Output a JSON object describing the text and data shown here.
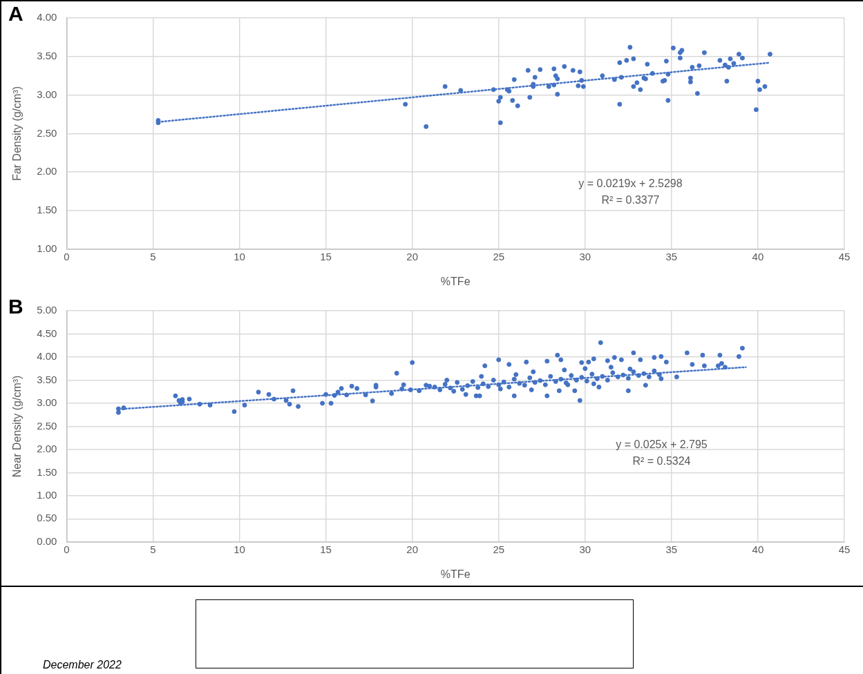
{
  "chart_data": [
    {
      "type": "scatter",
      "title": "A",
      "xlabel": "%TFe",
      "ylabel": "Far Density (g/cm³)",
      "grid": true,
      "marker": "circle",
      "xlim": [
        0,
        45
      ],
      "xticks": [
        0,
        5,
        10,
        15,
        20,
        25,
        30,
        35,
        40,
        45
      ],
      "ylim": [
        1,
        4
      ],
      "yticks": [
        {
          "value": 1,
          "label": "1.00"
        },
        {
          "value": 1.5,
          "label": "1.50"
        },
        {
          "value": 2,
          "label": "2.00"
        },
        {
          "value": 2.5,
          "label": "2.50"
        },
        {
          "value": 3,
          "label": "3.00"
        },
        {
          "value": 3.5,
          "label": "3.50"
        },
        {
          "value": 4,
          "label": "4.00"
        }
      ],
      "series": [
        {
          "type": "scatter",
          "color": "#4472c4",
          "x": [
            5.3,
            5.3,
            19.6,
            20.8,
            21.9,
            22.8,
            24.7,
            25.0,
            25.1,
            25.1,
            25.5,
            25.6,
            25.8,
            25.9,
            26.1,
            26.7,
            26.8,
            27.0,
            27.0,
            27.4,
            27.1,
            27.9,
            28.2,
            28.2,
            28.3,
            28.4,
            28.4,
            28.8,
            29.3,
            29.6,
            29.7,
            29.8,
            29.9,
            31.0,
            31.7,
            32.0,
            32.0,
            32.1,
            32.4,
            32.6,
            32.8,
            32.8,
            33.0,
            33.2,
            33.4,
            33.5,
            33.6,
            33.9,
            34.5,
            34.6,
            34.7,
            34.8,
            34.8,
            35.1,
            35.5,
            35.5,
            35.6,
            36.1,
            36.1,
            36.2,
            36.5,
            36.6,
            36.9,
            37.8,
            38.1,
            38.2,
            38.3,
            38.4,
            38.6,
            38.9,
            39.1,
            39.9,
            40.0,
            40.1,
            40.4,
            40.7
          ],
          "values": [
            2.67,
            2.64,
            2.88,
            2.59,
            3.11,
            3.06,
            3.07,
            2.92,
            2.64,
            2.97,
            3.07,
            3.05,
            2.93,
            3.2,
            2.86,
            3.32,
            2.97,
            3.11,
            3.14,
            3.33,
            3.23,
            3.11,
            3.13,
            3.34,
            3.25,
            3.01,
            3.21,
            3.37,
            3.32,
            3.12,
            3.3,
            3.19,
            3.11,
            3.25,
            3.2,
            2.88,
            3.42,
            3.23,
            3.45,
            3.62,
            3.11,
            3.47,
            3.16,
            3.07,
            3.22,
            3.21,
            3.4,
            3.28,
            3.18,
            3.19,
            3.44,
            2.93,
            3.27,
            3.61,
            3.48,
            3.55,
            3.58,
            3.22,
            3.17,
            3.36,
            3.02,
            3.38,
            3.55,
            3.45,
            3.39,
            3.18,
            3.36,
            3.47,
            3.41,
            3.53,
            3.48,
            2.81,
            3.18,
            3.07,
            3.11,
            3.53
          ]
        },
        {
          "type": "line",
          "color": "#4472c4",
          "marker": "none",
          "line_style": "dotted",
          "x": [
            5.3,
            40.7
          ],
          "values": [
            2.65,
            3.42
          ]
        }
      ],
      "annotations": [
        "y = 0.0219x + 2.5298",
        "R² = 0.3377"
      ]
    },
    {
      "type": "scatter",
      "title": "B",
      "xlabel": "%TFe",
      "ylabel": "Near Density (g/cm³)",
      "grid": true,
      "marker": "circle",
      "xlim": [
        0,
        45
      ],
      "xticks": [
        0,
        5,
        10,
        15,
        20,
        25,
        30,
        35,
        40,
        45
      ],
      "ylim": [
        0,
        5
      ],
      "yticks": [
        {
          "value": 0,
          "label": "0.00"
        },
        {
          "value": 0.5,
          "label": "0.50"
        },
        {
          "value": 1,
          "label": "1.00"
        },
        {
          "value": 1.5,
          "label": "1.50"
        },
        {
          "value": 2,
          "label": "2.00"
        },
        {
          "value": 2.5,
          "label": "2.50"
        },
        {
          "value": 3,
          "label": "3.00"
        },
        {
          "value": 3.5,
          "label": "3.50"
        },
        {
          "value": 4,
          "label": "4.00"
        },
        {
          "value": 4.5,
          "label": "4.50"
        },
        {
          "value": 5,
          "label": "5.00"
        }
      ],
      "series": [
        {
          "type": "scatter",
          "color": "#4472c4",
          "x": [
            3.0,
            3.0,
            3.3,
            6.3,
            6.5,
            6.6,
            6.7,
            6.7,
            7.1,
            7.7,
            8.3,
            9.7,
            10.3,
            11.1,
            11.7,
            12.0,
            12.7,
            12.9,
            13.1,
            13.4,
            14.8,
            15.0,
            15.3,
            15.5,
            15.7,
            15.9,
            16.2,
            16.5,
            16.8,
            17.3,
            17.7,
            17.9,
            17.9,
            18.8,
            19.1,
            19.4,
            19.5,
            19.9,
            20.0,
            20.4,
            20.8,
            21.0,
            22.4,
            23.1,
            23.7,
            23.9,
            24.2,
            25.0,
            25.1,
            25.6,
            25.9,
            26.6,
            26.9,
            27.8,
            27.8,
            28.4,
            28.5,
            28.6,
            29.4,
            29.7,
            29.8,
            30.2,
            30.5,
            30.8,
            30.9,
            31.3,
            31.7,
            32.1,
            32.5,
            32.8,
            33.2,
            33.5,
            34.0,
            34.4,
            34.4,
            34.7,
            35.3,
            35.9,
            36.2,
            36.8,
            36.9,
            37.7,
            37.8,
            37.9,
            38.1,
            38.9,
            39.1,
            21.3,
            21.6,
            21.9,
            22.2,
            22.6,
            22.9,
            23.2,
            23.5,
            23.8,
            24.1,
            24.4,
            24.7,
            25.0,
            25.3,
            25.6,
            25.9,
            26.2,
            26.5,
            26.8,
            27.1,
            27.4,
            27.7,
            28.0,
            28.3,
            28.6,
            28.9,
            29.2,
            29.5,
            29.8,
            30.1,
            30.4,
            30.7,
            31.0,
            31.3,
            31.6,
            31.9,
            32.2,
            32.5,
            32.8,
            33.1,
            33.4,
            33.7,
            34.0,
            34.3,
            26.0,
            27.0,
            28.8,
            30.0,
            31.5,
            32.6,
            29.0,
            30.5,
            24.0,
            22.0
          ],
          "values": [
            2.8,
            2.88,
            2.9,
            3.16,
            3.06,
            3.0,
            3.08,
            3.03,
            3.09,
            2.98,
            2.96,
            2.82,
            2.96,
            3.24,
            3.19,
            3.09,
            3.06,
            2.98,
            3.27,
            2.93,
            3.0,
            3.19,
            3.0,
            3.17,
            3.24,
            3.32,
            3.18,
            3.37,
            3.32,
            3.18,
            3.05,
            3.35,
            3.39,
            3.21,
            3.65,
            3.31,
            3.4,
            3.29,
            3.88,
            3.27,
            3.39,
            3.37,
            3.26,
            3.19,
            3.16,
            3.16,
            3.81,
            3.94,
            3.31,
            3.84,
            3.16,
            3.89,
            3.29,
            3.91,
            3.16,
            4.04,
            3.27,
            3.94,
            3.27,
            3.06,
            3.88,
            3.89,
            3.96,
            3.35,
            4.31,
            3.92,
            3.99,
            3.94,
            3.27,
            4.09,
            3.94,
            3.39,
            3.99,
            4.01,
            3.53,
            3.89,
            3.57,
            4.09,
            3.84,
            4.04,
            3.81,
            3.81,
            4.04,
            3.86,
            3.78,
            4.01,
            4.19,
            3.35,
            3.29,
            3.41,
            3.33,
            3.45,
            3.3,
            3.38,
            3.47,
            3.34,
            3.42,
            3.36,
            3.5,
            3.4,
            3.46,
            3.35,
            3.52,
            3.43,
            3.39,
            3.55,
            3.45,
            3.49,
            3.4,
            3.58,
            3.47,
            3.52,
            3.44,
            3.6,
            3.5,
            3.56,
            3.48,
            3.63,
            3.53,
            3.58,
            3.5,
            3.66,
            3.57,
            3.61,
            3.54,
            3.68,
            3.6,
            3.64,
            3.57,
            3.7,
            3.62,
            3.62,
            3.68,
            3.72,
            3.75,
            3.78,
            3.74,
            3.4,
            3.42,
            3.58,
            3.5
          ]
        },
        {
          "type": "line",
          "color": "#4472c4",
          "marker": "none",
          "line_style": "dotted",
          "x": [
            3.0,
            39.3
          ],
          "values": [
            2.87,
            3.78
          ]
        }
      ],
      "annotations": [
        "y = 0.025x + 2.795",
        "R² = 0.5324",
        "December 2022"
      ]
    }
  ]
}
